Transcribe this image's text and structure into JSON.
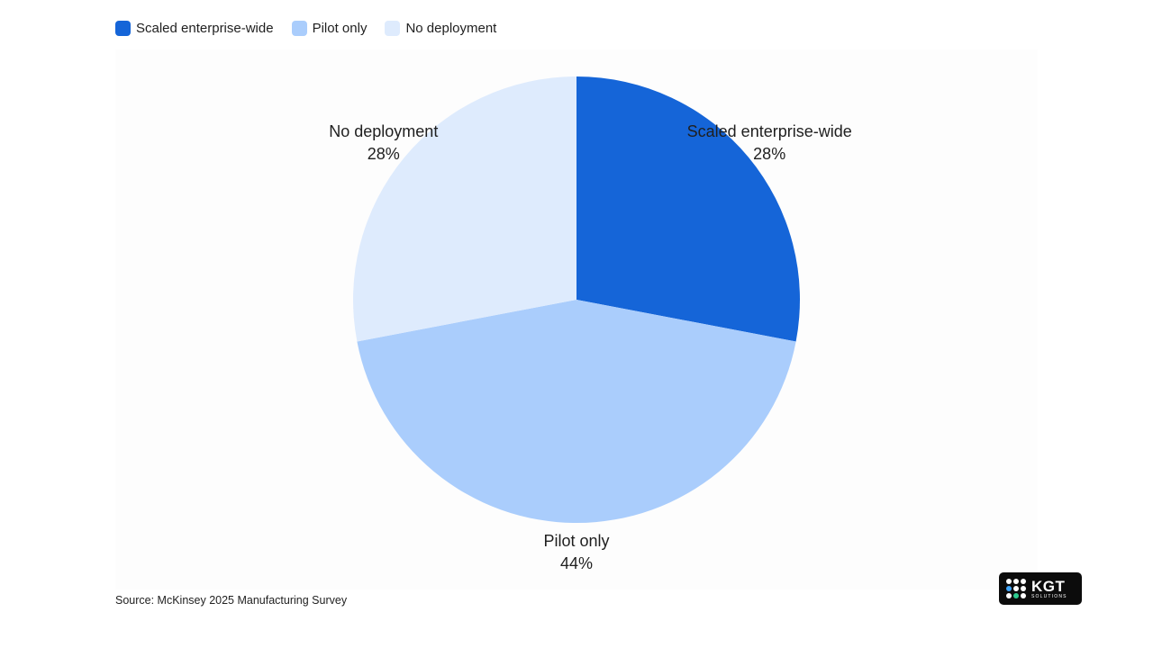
{
  "chart_data": {
    "type": "pie",
    "categories": [
      "Scaled enterprise-wide",
      "Pilot only",
      "No deployment"
    ],
    "values": [
      28,
      44,
      28
    ],
    "value_labels": [
      "28%",
      "44%",
      "28%"
    ],
    "colors": [
      "#1565d8",
      "#aacdfc",
      "#deebfd"
    ],
    "legend": {
      "placement": "top-left",
      "entries": [
        "Scaled enterprise-wide",
        "Pilot only",
        "No deployment"
      ]
    },
    "start_angle": "12 o'clock",
    "direction": "clockwise",
    "title": ""
  },
  "source": "Source: McKinsey 2025 Manufacturing Survey",
  "logo": {
    "text": "KGT",
    "subtext": "SOLUTIONS"
  }
}
